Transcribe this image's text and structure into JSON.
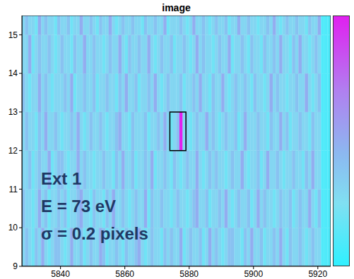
{
  "chart_data": {
    "type": "heatmap",
    "title": "image",
    "xlim": [
      5828,
      5924
    ],
    "xticks": [
      5840,
      5860,
      5880,
      5900,
      5920
    ],
    "ylim": [
      9,
      15.5
    ],
    "yticks": [
      9,
      10,
      11,
      12,
      13,
      14,
      15
    ],
    "x": [
      5828,
      5829,
      5830,
      5831,
      5832,
      5833,
      5834,
      5835,
      5836,
      5837,
      5838,
      5839,
      5840,
      5841,
      5842,
      5843,
      5844,
      5845,
      5846,
      5847,
      5848,
      5849,
      5850,
      5851,
      5852,
      5853,
      5854,
      5855,
      5856,
      5857,
      5858,
      5859,
      5860,
      5861,
      5862,
      5863,
      5864,
      5865,
      5866,
      5867,
      5868,
      5869,
      5870,
      5871,
      5872,
      5873,
      5874,
      5875,
      5876,
      5877,
      5878,
      5879,
      5880,
      5881,
      5882,
      5883,
      5884,
      5885,
      5886,
      5887,
      5888,
      5889,
      5890,
      5891,
      5892,
      5893,
      5894,
      5895,
      5896,
      5897,
      5898,
      5899,
      5900,
      5901,
      5902,
      5903,
      5904,
      5905,
      5906,
      5907,
      5908,
      5909,
      5910,
      5911,
      5912,
      5913,
      5914,
      5915,
      5916,
      5917,
      5918,
      5919,
      5920,
      5921,
      5922,
      5923,
      5924
    ],
    "y": [
      9,
      10,
      11,
      12,
      13,
      14,
      15,
      16
    ],
    "cells": [
      [
        3,
        4,
        3,
        2,
        4,
        3,
        5,
        3,
        2,
        3,
        4,
        4,
        3,
        2,
        3,
        5,
        3,
        3,
        4,
        2,
        3,
        4,
        3,
        3,
        5,
        4,
        2,
        3,
        3,
        4,
        3,
        2,
        4,
        3,
        3,
        4,
        5,
        3,
        2,
        3,
        4,
        3,
        3,
        2,
        4,
        3,
        4,
        3,
        3,
        5,
        2,
        3,
        4,
        3,
        3,
        4,
        2,
        3,
        5,
        3,
        4,
        3,
        2,
        3,
        4,
        4,
        3,
        3,
        2,
        4,
        3,
        5,
        3,
        3,
        4,
        2,
        3,
        3,
        4,
        3,
        5,
        3,
        2,
        4,
        3,
        3,
        4,
        3,
        2,
        3,
        4,
        3,
        3,
        1,
        1,
        1
      ],
      [
        4,
        3,
        3,
        2,
        3,
        5,
        3,
        4,
        2,
        3,
        3,
        4,
        3,
        4,
        2,
        3,
        3,
        4,
        5,
        3,
        3,
        2,
        4,
        3,
        3,
        2,
        4,
        3,
        5,
        3,
        3,
        4,
        3,
        2,
        3,
        4,
        3,
        3,
        5,
        2,
        4,
        3,
        3,
        4,
        3,
        3,
        2,
        3,
        4,
        3,
        3,
        2,
        3,
        4,
        5,
        3,
        3,
        4,
        2,
        3,
        3,
        4,
        3,
        5,
        3,
        2,
        3,
        4,
        3,
        3,
        4,
        2,
        3,
        5,
        3,
        4,
        3,
        3,
        2,
        3,
        4,
        3,
        3,
        4,
        2,
        3,
        4,
        3,
        3,
        5,
        3,
        2,
        4,
        1,
        1,
        1
      ],
      [
        3,
        3,
        4,
        2,
        3,
        4,
        3,
        3,
        5,
        2,
        3,
        4,
        4,
        3,
        2,
        3,
        3,
        5,
        3,
        4,
        3,
        3,
        2,
        3,
        3,
        4,
        3,
        3,
        2,
        4,
        3,
        5,
        3,
        3,
        4,
        2,
        3,
        3,
        4,
        3,
        5,
        2,
        3,
        3,
        4,
        3,
        2,
        4,
        3,
        2,
        3,
        4,
        3,
        3,
        5,
        3,
        2,
        3,
        4,
        3,
        4,
        3,
        3,
        2,
        3,
        4,
        3,
        3,
        5,
        3,
        2,
        3,
        3,
        4,
        2,
        3,
        5,
        3,
        3,
        4,
        3,
        2,
        3,
        3,
        4,
        3,
        3,
        2,
        4,
        3,
        5,
        3,
        3,
        1,
        1,
        1
      ],
      [
        3,
        4,
        3,
        3,
        2,
        4,
        3,
        5,
        3,
        3,
        4,
        3,
        2,
        3,
        3,
        4,
        3,
        5,
        3,
        2,
        3,
        4,
        3,
        3,
        4,
        3,
        2,
        3,
        3,
        4,
        5,
        3,
        3,
        2,
        4,
        3,
        3,
        3,
        4,
        2,
        3,
        3,
        4,
        3,
        5,
        3,
        2,
        3,
        4,
        10,
        3,
        3,
        2,
        3,
        4,
        3,
        3,
        5,
        3,
        4,
        3,
        2,
        3,
        4,
        3,
        3,
        4,
        2,
        3,
        5,
        3,
        3,
        3,
        4,
        3,
        3,
        2,
        4,
        3,
        3,
        5,
        3,
        4,
        2,
        3,
        3,
        4,
        3,
        3,
        2,
        4,
        3,
        3,
        1,
        1,
        1
      ],
      [
        4,
        3,
        2,
        3,
        3,
        5,
        3,
        4,
        3,
        2,
        3,
        3,
        3,
        4,
        3,
        5,
        2,
        3,
        3,
        4,
        3,
        3,
        4,
        2,
        3,
        3,
        4,
        3,
        3,
        2,
        4,
        3,
        5,
        3,
        3,
        4,
        2,
        3,
        3,
        4,
        3,
        5,
        3,
        2,
        3,
        4,
        3,
        3,
        3,
        4,
        2,
        3,
        3,
        4,
        3,
        5,
        3,
        3,
        2,
        4,
        3,
        3,
        5,
        3,
        2,
        3,
        4,
        3,
        3,
        4,
        3,
        2,
        4,
        3,
        3,
        2,
        3,
        5,
        3,
        4,
        3,
        3,
        2,
        3,
        3,
        4,
        3,
        3,
        5,
        3,
        2,
        3,
        4,
        1,
        1,
        1
      ],
      [
        3,
        3,
        5,
        2,
        3,
        4,
        3,
        3,
        4,
        3,
        2,
        3,
        4,
        3,
        3,
        2,
        4,
        3,
        3,
        5,
        3,
        3,
        4,
        3,
        3,
        2,
        3,
        4,
        3,
        3,
        5,
        3,
        2,
        4,
        3,
        3,
        4,
        3,
        3,
        5,
        3,
        2,
        3,
        4,
        3,
        3,
        4,
        2,
        3,
        3,
        4,
        3,
        2,
        3,
        5,
        3,
        4,
        3,
        3,
        2,
        3,
        4,
        3,
        3,
        5,
        2,
        3,
        3,
        4,
        3,
        2,
        4,
        3,
        3,
        2,
        4,
        3,
        3,
        4,
        3,
        5,
        3,
        3,
        2,
        4,
        3,
        5,
        3,
        3,
        2,
        3,
        4,
        3,
        1,
        1,
        1
      ],
      [
        3,
        4,
        3,
        3,
        2,
        5,
        3,
        4,
        3,
        3,
        2,
        4,
        3,
        3,
        4,
        2,
        3,
        3,
        5,
        3,
        3,
        4,
        3,
        2,
        4,
        3,
        3,
        5,
        3,
        2,
        3,
        4,
        3,
        3,
        4,
        3,
        3,
        2,
        4,
        3,
        3,
        4,
        3,
        3,
        5,
        2,
        3,
        3,
        3,
        4,
        3,
        2,
        3,
        5,
        3,
        3,
        4,
        3,
        2,
        3,
        4,
        3,
        3,
        4,
        2,
        3,
        3,
        5,
        3,
        3,
        4,
        3,
        3,
        2,
        3,
        3,
        4,
        3,
        5,
        3,
        2,
        3,
        4,
        3,
        3,
        4,
        3,
        3,
        2,
        4,
        3,
        3,
        5,
        1,
        1,
        1
      ]
    ],
    "zlim": [
      0,
      10
    ],
    "box": {
      "x": [
        5874,
        5879
      ],
      "y": [
        12,
        13
      ]
    },
    "annotations": [
      "Ext 1",
      "E = 73 eV",
      "σ = 0.2 pixels"
    ]
  }
}
